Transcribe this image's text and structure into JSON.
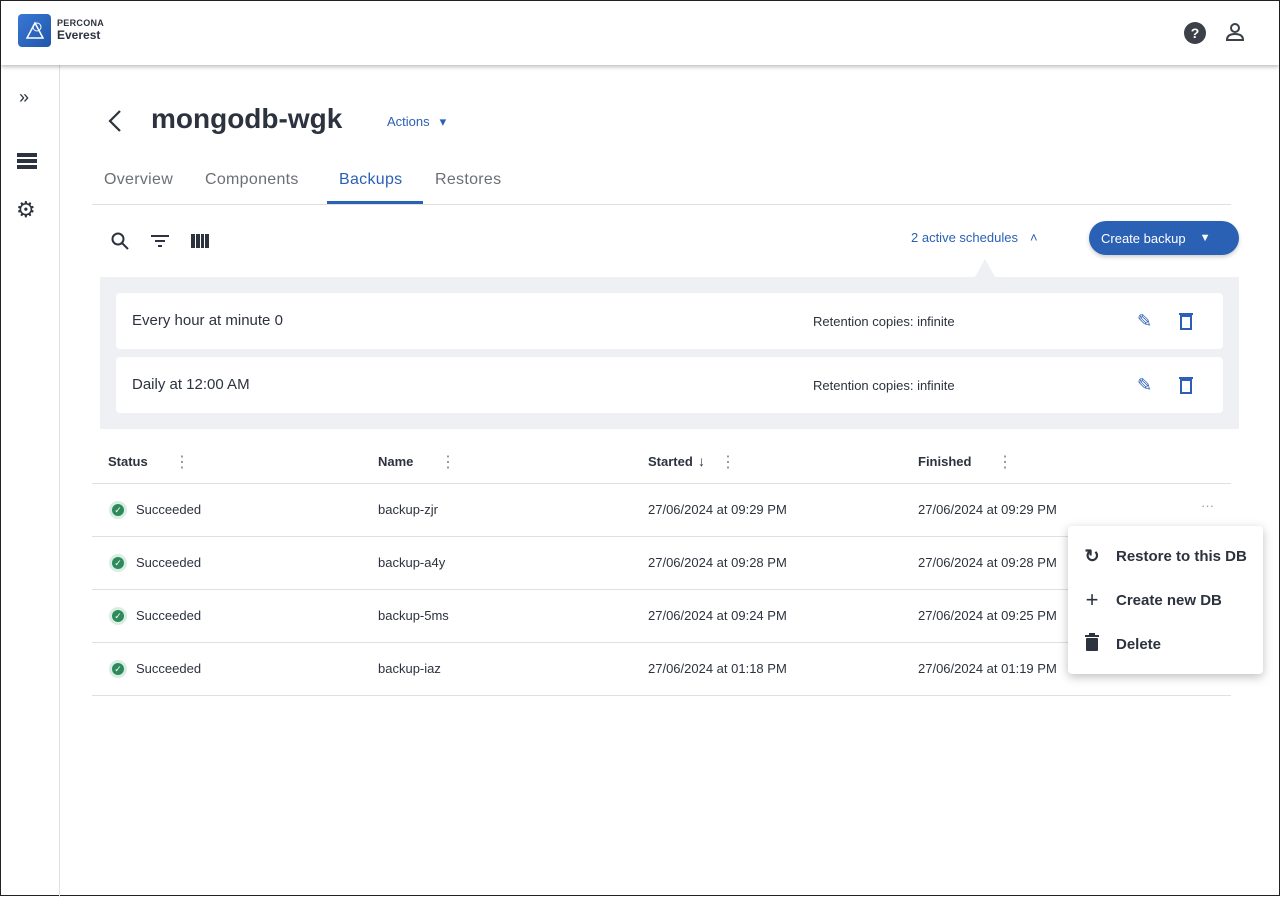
{
  "brand": {
    "top": "PERCONA",
    "bottom": "Everest"
  },
  "header": {
    "help_icon": "help-circle-icon",
    "user_icon": "person-icon"
  },
  "page": {
    "title": "mongodb-wgk",
    "actions_label": "Actions"
  },
  "tabs": [
    {
      "label": "Overview"
    },
    {
      "label": "Components"
    },
    {
      "label": "Backups",
      "active": true
    },
    {
      "label": "Restores"
    }
  ],
  "toolbar": {
    "schedules_label": "2 active schedules",
    "create_label": "Create backup"
  },
  "schedules": [
    {
      "name": "Every hour at minute 0",
      "retention": "Retention copies: infinite"
    },
    {
      "name": "Daily at 12:00 AM",
      "retention": "Retention copies: infinite"
    }
  ],
  "table": {
    "columns": [
      "Status",
      "Name",
      "Started",
      "Finished"
    ],
    "rows": [
      {
        "status": "Succeeded",
        "name": "backup-zjr",
        "started": "27/06/2024 at 09:29 PM",
        "finished": "27/06/2024 at 09:29 PM"
      },
      {
        "status": "Succeeded",
        "name": "backup-a4y",
        "started": "27/06/2024 at 09:28 PM",
        "finished": "27/06/2024 at 09:28 PM"
      },
      {
        "status": "Succeeded",
        "name": "backup-5ms",
        "started": "27/06/2024 at 09:24 PM",
        "finished": "27/06/2024 at 09:25 PM"
      },
      {
        "status": "Succeeded",
        "name": "backup-iaz",
        "started": "27/06/2024 at 01:18 PM",
        "finished": "27/06/2024 at 01:19 PM"
      }
    ]
  },
  "menu": {
    "items": [
      "Restore to this DB",
      "Create new DB",
      "Delete"
    ]
  },
  "colors": {
    "accent": "#2b61b5",
    "success": "#2e8a5a",
    "panel": "#eef0f4"
  }
}
